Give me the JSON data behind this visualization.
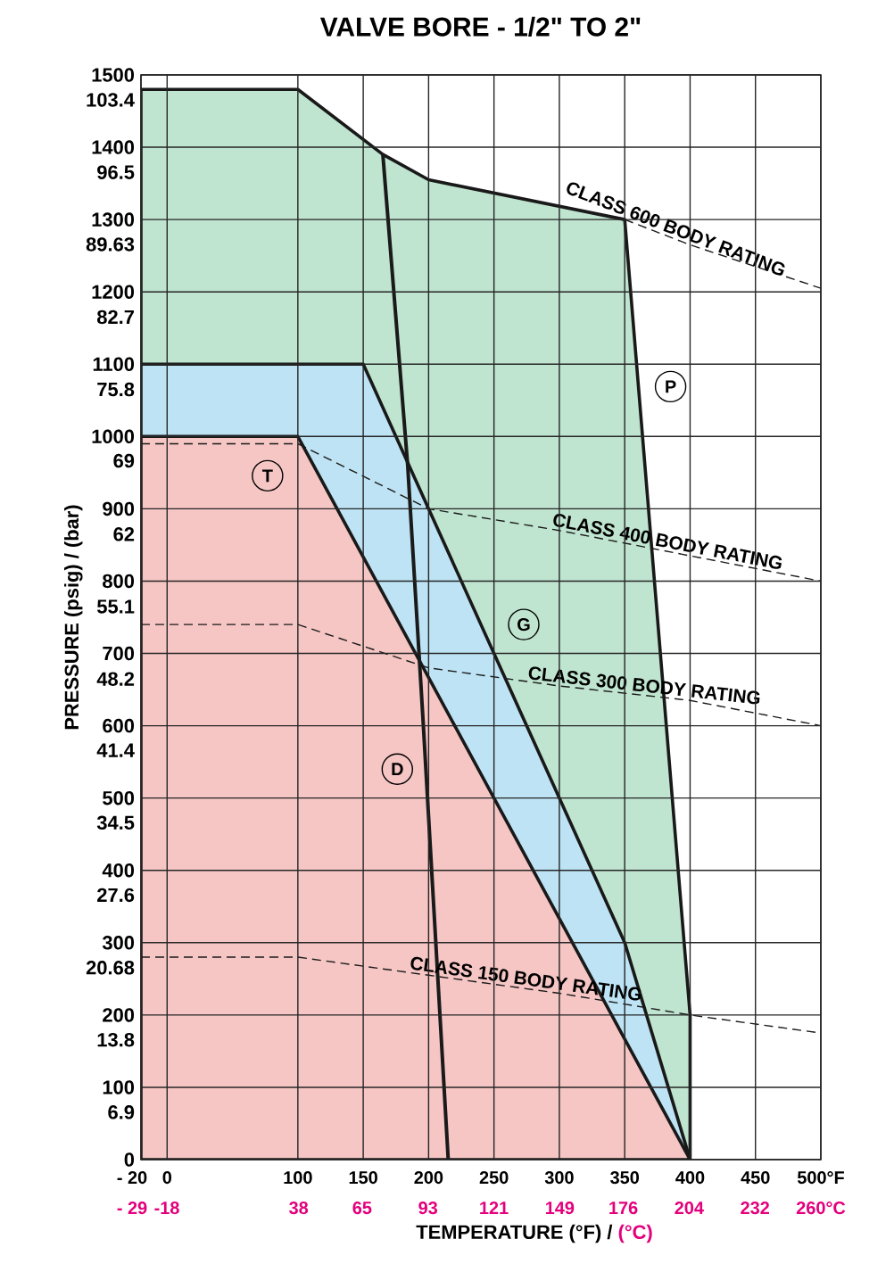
{
  "chart_data": {
    "type": "area",
    "title": "VALVE BORE - 1/2\" TO 2\"",
    "xlabel": "TEMPERATURE (°F) /",
    "x2label": "(°C)",
    "y2label": "PRESSURE (psig) / (bar)",
    "xlim": [
      -20,
      500
    ],
    "xticks": [
      {
        "value": -20,
        "label": "- 20"
      },
      0,
      100,
      150,
      200,
      250,
      300,
      350,
      400,
      450,
      {
        "value": 500,
        "label": "500°F"
      }
    ],
    "x2lim": [
      -29,
      260
    ],
    "x2ticks": [
      {
        "value": -29,
        "label": "- 29"
      },
      -18,
      38,
      65,
      93,
      121,
      149,
      176,
      204,
      232,
      {
        "value": 260,
        "label": "260°C"
      }
    ],
    "ylim": [
      0,
      1500
    ],
    "yticks": [
      0,
      100,
      200,
      300,
      400,
      500,
      600,
      700,
      800,
      900,
      1000,
      1100,
      1200,
      1300,
      1400,
      1500
    ],
    "y2lim": [
      0,
      103.4
    ],
    "y2ticks": [
      6.9,
      13.8,
      20.68,
      27.6,
      34.5,
      41.4,
      48.2,
      55.1,
      62,
      69,
      75.8,
      82.7,
      89.63,
      96.5,
      103.4
    ],
    "grid": true,
    "series": [
      {
        "name": "P",
        "color": "#bfe4cf",
        "x": [
          -20,
          100,
          165,
          200,
          350,
          400,
          400
        ],
        "values": [
          1480,
          1480,
          1390,
          1355,
          1300,
          200,
          0
        ]
      },
      {
        "name": "G",
        "color": "#bde3f4",
        "x": [
          -20,
          150,
          350,
          400
        ],
        "values": [
          1100,
          1100,
          300,
          0
        ]
      },
      {
        "name": "T",
        "color": "#f5c6c4",
        "x": [
          -20,
          100,
          400
        ],
        "values": [
          1000,
          1000,
          0
        ]
      },
      {
        "name": "D",
        "type": "line",
        "color": "#1a1a1a",
        "x": [
          165,
          184,
          196,
          215
        ],
        "values": [
          1390,
          960,
          600,
          0
        ]
      },
      {
        "name": "CLASS 600 BODY RATING",
        "type": "line",
        "line_style": "dashed",
        "color": "#1a1a1a",
        "x": [
          350,
          400,
          500
        ],
        "values": [
          1300,
          1265,
          1205
        ]
      },
      {
        "name": "CLASS 400 BODY RATING",
        "type": "line",
        "line_style": "dashed",
        "color": "#1a1a1a",
        "x": [
          -20,
          100,
          200,
          300,
          400,
          500
        ],
        "values": [
          990,
          990,
          900,
          870,
          835,
          800
        ]
      },
      {
        "name": "CLASS 300 BODY RATING",
        "type": "line",
        "line_style": "dashed",
        "color": "#1a1a1a",
        "x": [
          -20,
          100,
          200,
          300,
          400,
          500
        ],
        "values": [
          740,
          740,
          680,
          655,
          635,
          600
        ]
      },
      {
        "name": "CLASS 150 BODY RATING",
        "type": "line",
        "line_style": "dashed",
        "color": "#1a1a1a",
        "x": [
          -20,
          100,
          200,
          300,
          400,
          500
        ],
        "values": [
          280,
          280,
          255,
          230,
          200,
          175
        ]
      }
    ]
  }
}
